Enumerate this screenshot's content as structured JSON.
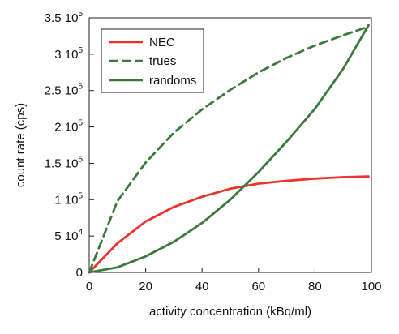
{
  "chart_data": {
    "type": "line",
    "xlabel": "activity concentration (kBq/ml)",
    "ylabel": "count rate (cps)",
    "xlim": [
      0,
      100
    ],
    "ylim": [
      0,
      350000
    ],
    "x_ticks": [
      0,
      20,
      40,
      60,
      80,
      100
    ],
    "y_ticks": [
      {
        "value": 0,
        "mantissa": "0",
        "exponent": ""
      },
      {
        "value": 50000,
        "mantissa": "5 10",
        "exponent": "4"
      },
      {
        "value": 100000,
        "mantissa": "1 10",
        "exponent": "5"
      },
      {
        "value": 150000,
        "mantissa": "1.5 10",
        "exponent": "5"
      },
      {
        "value": 200000,
        "mantissa": "2 10",
        "exponent": "5"
      },
      {
        "value": 250000,
        "mantissa": "2.5 10",
        "exponent": "5"
      },
      {
        "value": 300000,
        "mantissa": "3 10",
        "exponent": "5"
      },
      {
        "value": 350000,
        "mantissa": "3.5 10",
        "exponent": "5"
      }
    ],
    "grid": false,
    "legend_position": "top-left",
    "x": [
      0,
      10,
      20,
      30,
      40,
      50,
      60,
      70,
      80,
      90,
      99
    ],
    "series": [
      {
        "name": "NEC",
        "color": "#e8352b",
        "dash": "solid",
        "values": [
          0,
          40000,
          70000,
          90000,
          104000,
          115000,
          122000,
          126000,
          129000,
          131000,
          132000
        ]
      },
      {
        "name": "trues",
        "color": "#3c7a3c",
        "dash": "dashed",
        "values": [
          0,
          98000,
          151000,
          192000,
          224000,
          251000,
          275000,
          295000,
          312000,
          326000,
          338000
        ]
      },
      {
        "name": "randoms",
        "color": "#3c7a3c",
        "dash": "solid",
        "values": [
          0,
          7000,
          22000,
          42000,
          68000,
          100000,
          138000,
          180000,
          225000,
          280000,
          340000
        ]
      }
    ]
  }
}
